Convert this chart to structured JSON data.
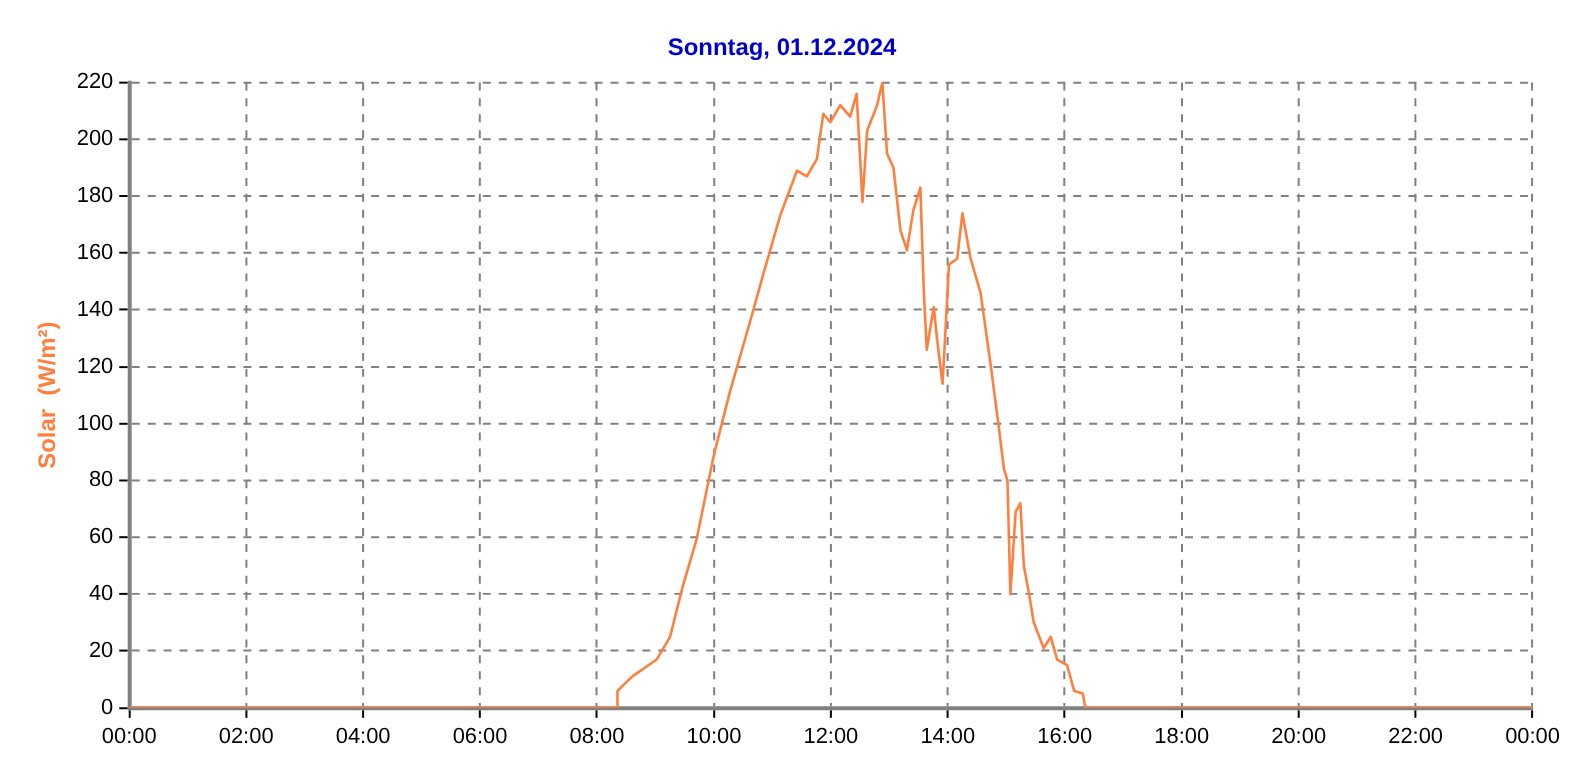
{
  "chart_data": {
    "type": "line",
    "title": "Sonntag, 01.12.2024",
    "ylabel": "Solar  (W/m²)",
    "x": [
      0,
      8.34,
      8.35,
      8.6,
      9.02,
      9.25,
      9.47,
      9.7,
      10.0,
      10.27,
      10.62,
      10.85,
      11.13,
      11.42,
      11.59,
      11.76,
      11.87,
      11.99,
      12.16,
      12.33,
      12.44,
      12.54,
      12.62,
      12.79,
      12.88,
      12.96,
      13.07,
      13.19,
      13.3,
      13.41,
      13.53,
      13.59,
      13.64,
      13.76,
      13.82,
      13.91,
      14.02,
      14.16,
      14.25,
      14.39,
      14.56,
      14.73,
      14.87,
      14.96,
      15.02,
      15.07,
      15.16,
      15.24,
      15.3,
      15.39,
      15.47,
      15.64,
      15.76,
      15.87,
      16.04,
      16.16,
      16.31,
      16.35,
      24
    ],
    "series": [
      {
        "color": "#ff7f3f",
        "values": [
          0,
          0,
          6,
          11,
          17,
          25,
          43,
          59,
          89,
          111,
          136,
          153,
          173,
          189,
          187,
          193,
          209,
          206,
          212,
          208,
          216,
          178,
          203,
          212,
          220,
          195,
          190,
          168,
          161,
          175,
          183,
          146,
          126,
          141,
          129,
          114,
          156,
          158,
          174,
          158,
          146,
          121,
          99,
          84,
          80,
          40,
          69,
          72,
          50,
          40,
          30,
          21,
          25,
          17,
          15,
          6,
          5,
          0,
          0
        ]
      }
    ],
    "xlim": [
      0,
      24
    ],
    "xticks": [
      {
        "value": 0,
        "label": "00:00"
      },
      {
        "value": 2,
        "label": "02:00"
      },
      {
        "value": 4,
        "label": "04:00"
      },
      {
        "value": 6,
        "label": "06:00"
      },
      {
        "value": 8,
        "label": "08:00"
      },
      {
        "value": 10,
        "label": "10:00"
      },
      {
        "value": 12,
        "label": "12:00"
      },
      {
        "value": 14,
        "label": "14:00"
      },
      {
        "value": 16,
        "label": "16:00"
      },
      {
        "value": 18,
        "label": "18:00"
      },
      {
        "value": 20,
        "label": "20:00"
      },
      {
        "value": 22,
        "label": "22:00"
      },
      {
        "value": 24,
        "label": "00:00"
      }
    ],
    "ylim": [
      0,
      220
    ],
    "yticks": [
      0,
      20,
      40,
      60,
      80,
      100,
      120,
      140,
      160,
      180,
      200,
      220
    ],
    "grid": true,
    "legend": false,
    "marker": "none",
    "line_style": "solid"
  }
}
